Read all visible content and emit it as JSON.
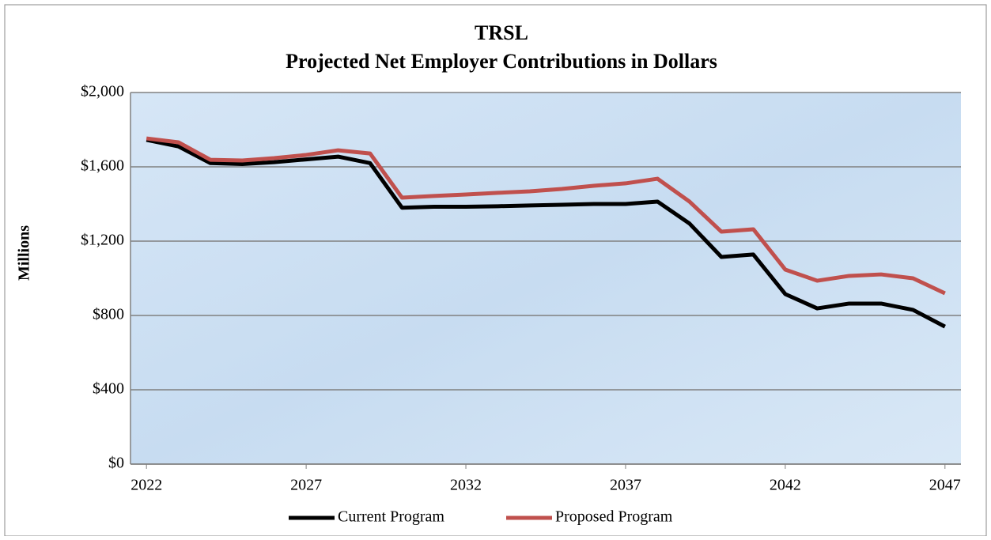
{
  "chart_data": {
    "type": "line",
    "title": [
      "TRSL",
      "Projected Net Employer Contributions in Dollars"
    ],
    "y_label": "Millions",
    "x": [
      2022,
      2023,
      2024,
      2025,
      2026,
      2027,
      2028,
      2029,
      2030,
      2031,
      2032,
      2033,
      2034,
      2035,
      2036,
      2037,
      2038,
      2039,
      2040,
      2041,
      2042,
      2043,
      2044,
      2045,
      2046,
      2047
    ],
    "series": [
      {
        "name": "Current Program",
        "color": "#000000",
        "values": [
          1745,
          1710,
          1620,
          1615,
          1625,
          1640,
          1655,
          1620,
          1380,
          1385,
          1385,
          1388,
          1392,
          1396,
          1400,
          1400,
          1413,
          1295,
          1115,
          1128,
          915,
          838,
          864,
          864,
          830,
          740
        ]
      },
      {
        "name": "Proposed Program",
        "color": "#c0504d",
        "values": [
          1753,
          1732,
          1638,
          1634,
          1647,
          1664,
          1689,
          1672,
          1434,
          1443,
          1451,
          1460,
          1468,
          1481,
          1498,
          1511,
          1536,
          1413,
          1251,
          1264,
          1047,
          987,
          1013,
          1021,
          1000,
          919
        ]
      }
    ],
    "xlim": [
      2021.5,
      2047.5
    ],
    "xticks": [
      2022,
      2027,
      2032,
      2037,
      2042,
      2047
    ],
    "ylim": [
      0,
      2000
    ],
    "yticks": [
      {
        "value": 0,
        "label": "$0"
      },
      {
        "value": 400,
        "label": "$400"
      },
      {
        "value": 800,
        "label": "$800"
      },
      {
        "value": 1200,
        "label": "$1,200"
      },
      {
        "value": 1600,
        "label": "$1,600"
      },
      {
        "value": 2000,
        "label": "$2,000"
      }
    ],
    "grid": true,
    "legend": "bottom"
  }
}
